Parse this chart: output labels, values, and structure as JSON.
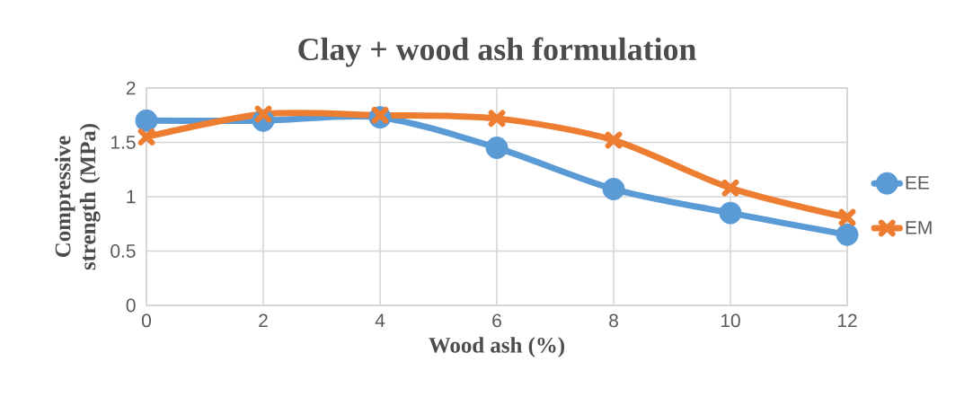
{
  "chart_data": {
    "type": "line",
    "title": "Clay + wood ash formulation",
    "xlabel": "Wood ash (%)",
    "ylabel": "Compressive strength (MPa)",
    "x": [
      0,
      2,
      4,
      6,
      8,
      10,
      12
    ],
    "series": [
      {
        "name": "EE",
        "color": "#5b9bd5",
        "marker": "circle",
        "values": [
          1.7,
          1.7,
          1.73,
          1.45,
          1.07,
          0.85,
          0.65
        ]
      },
      {
        "name": "EM",
        "color": "#ed7d31",
        "marker": "cross",
        "values": [
          1.55,
          1.76,
          1.75,
          1.72,
          1.52,
          1.08,
          0.81
        ]
      }
    ],
    "xlim": [
      0,
      12
    ],
    "xticks": [
      0,
      2,
      4,
      6,
      8,
      10,
      12
    ],
    "ylim": [
      0,
      2
    ],
    "yticks": [
      0,
      0.5,
      1,
      1.5,
      2
    ],
    "grid": true,
    "legend": "right",
    "line_style": "solid"
  }
}
